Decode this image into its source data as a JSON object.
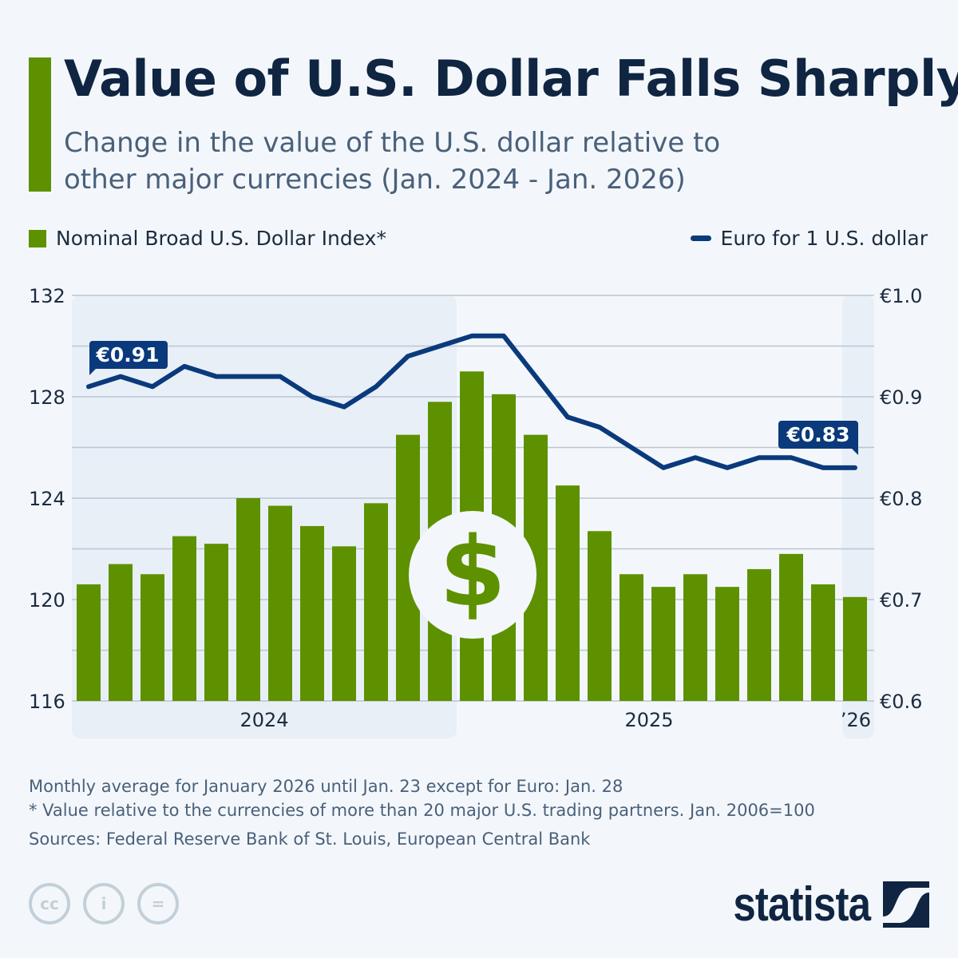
{
  "header": {
    "title": "Value of U.S. Dollar Falls Sharply",
    "subtitle": "Change in the value of the U.S. dollar relative to other major currencies (Jan. 2024 - Jan. 2026)"
  },
  "chart_data": {
    "type": "bar+line",
    "legend_placement": "top",
    "grid": true,
    "categories": [
      "Jan 2024",
      "Feb 2024",
      "Mar 2024",
      "Apr 2024",
      "May 2024",
      "Jun 2024",
      "Jul 2024",
      "Aug 2024",
      "Sep 2024",
      "Oct 2024",
      "Nov 2024",
      "Dec 2024",
      "Jan 2025",
      "Feb 2025",
      "Mar 2025",
      "Apr 2025",
      "May 2025",
      "Jun 2025",
      "Jul 2025",
      "Aug 2025",
      "Sep 2025",
      "Oct 2025",
      "Nov 2025",
      "Dec 2025",
      "Jan 2026"
    ],
    "x_tick_labels": [
      "2024",
      "2025",
      "’26"
    ],
    "series": [
      {
        "name": "Nominal Broad U.S. Dollar Index*",
        "type": "bar",
        "axis": "left",
        "color": "#5d9100",
        "values": [
          120.6,
          121.4,
          121.0,
          122.5,
          122.2,
          124.0,
          123.7,
          122.9,
          122.1,
          123.8,
          126.5,
          127.8,
          129.0,
          128.1,
          126.5,
          124.5,
          122.7,
          121.0,
          120.5,
          121.0,
          120.5,
          121.2,
          121.8,
          120.6,
          120.1
        ]
      },
      {
        "name": "Euro for 1 U.S. dollar",
        "type": "line",
        "axis": "right",
        "color": "#0a3a7c",
        "values": [
          0.91,
          0.92,
          0.91,
          0.93,
          0.92,
          0.92,
          0.92,
          0.9,
          0.89,
          0.91,
          0.94,
          0.95,
          0.96,
          0.96,
          0.92,
          0.88,
          0.87,
          0.85,
          0.83,
          0.84,
          0.83,
          0.84,
          0.84,
          0.83,
          0.83
        ]
      }
    ],
    "left_axis": {
      "ylim": [
        116,
        132
      ],
      "ticks": [
        "116",
        "120",
        "124",
        "128",
        "132"
      ]
    },
    "right_axis": {
      "ylim": [
        0.6,
        1.0
      ],
      "ticks": [
        "€0.6",
        "€0.7",
        "€0.8",
        "€0.9",
        "€1.0"
      ]
    },
    "annotations": {
      "first": "€0.91",
      "last": "€0.83"
    }
  },
  "notes": [
    "Monthly average for January 2026 until Jan. 23 except for Euro: Jan. 28",
    "* Value relative to the currencies of more than 20 major U.S. trading partners. Jan. 2006=100",
    "Sources: Federal Reserve Bank of St. Louis, European Central Bank"
  ],
  "footer": {
    "logo": "statista",
    "license_icons": [
      "cc-icon",
      "attribution-icon",
      "no-derivatives-icon"
    ]
  }
}
